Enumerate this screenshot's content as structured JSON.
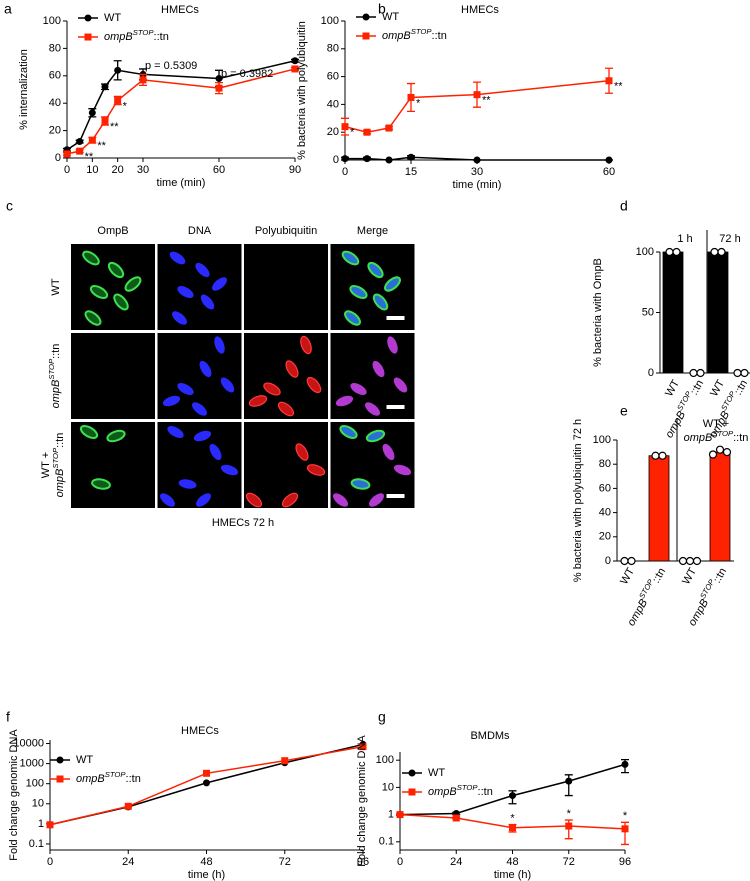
{
  "chart_data": [
    {
      "panel": "a",
      "type": "line",
      "title": "HMECs",
      "x_label": "time (min)",
      "y_label": "% internalization",
      "x": [
        0,
        5,
        10,
        15,
        20,
        30,
        60,
        90
      ],
      "xlim": [
        0,
        90
      ],
      "xticks": [
        0,
        10,
        20,
        30,
        60,
        90
      ],
      "ylim": [
        0,
        100
      ],
      "yticks": [
        0,
        20,
        40,
        60,
        80,
        100
      ],
      "legend": "upper left",
      "series": [
        {
          "name": "WT",
          "color": "#000000",
          "marker": "circle",
          "values": [
            6,
            12,
            33,
            52,
            64,
            61,
            58,
            71
          ],
          "errors": [
            1,
            1,
            3,
            2,
            7,
            4,
            6,
            1
          ]
        },
        {
          "name": [
            "ompB",
            "STOP",
            "::tn"
          ],
          "color": "#ff2200",
          "marker": "square",
          "values": [
            3,
            5,
            13,
            27,
            42,
            57,
            51,
            65
          ],
          "errors": [
            1,
            1,
            2,
            3,
            3,
            4,
            4,
            1
          ]
        }
      ],
      "annotations": [
        {
          "text": "**",
          "x": 5
        },
        {
          "text": "**",
          "x": 10
        },
        {
          "text": "**",
          "x": 15
        },
        {
          "text": "*",
          "x": 20
        },
        {
          "text": "p = 0.5309",
          "x": 30
        },
        {
          "text": "p = 0.3982",
          "x": 60
        }
      ]
    },
    {
      "panel": "b",
      "type": "line",
      "title": "HMECs",
      "x_label": "time (min)",
      "y_label": "% bacteria with polyubiquitin",
      "x": [
        0,
        5,
        10,
        15,
        30,
        60
      ],
      "xlim": [
        0,
        60
      ],
      "xticks": [
        0,
        15,
        30,
        60
      ],
      "ylim": [
        0,
        100
      ],
      "yticks": [
        0,
        20,
        40,
        60,
        80,
        100
      ],
      "legend": "upper left",
      "series": [
        {
          "name": "WT",
          "color": "#000000",
          "marker": "circle",
          "values": [
            1,
            1,
            0,
            2,
            0,
            0
          ],
          "errors": [
            1,
            1,
            0,
            1,
            0,
            0
          ]
        },
        {
          "name": [
            "ompB",
            "STOP",
            "::tn"
          ],
          "color": "#ff2200",
          "marker": "square",
          "values": [
            24,
            20,
            23,
            45,
            47,
            57
          ],
          "errors": [
            6,
            1,
            1,
            10,
            9,
            9
          ]
        }
      ],
      "annotations": [
        {
          "text": "*",
          "x": 0
        },
        {
          "text": "*",
          "x": 15
        },
        {
          "text": "**",
          "x": 30
        },
        {
          "text": "**",
          "x": 60
        }
      ]
    },
    {
      "panel": "d",
      "type": "bar",
      "y_label": "% bacteria with OmpB",
      "ylim": [
        0,
        100
      ],
      "yticks": [
        0,
        50,
        100
      ],
      "categories": [
        "WT",
        [
          "ompB",
          "STOP",
          "::tn"
        ]
      ],
      "colors": [
        "#000000",
        "#000000"
      ],
      "groups": [
        {
          "label": "1 h",
          "values": [
            100,
            0
          ],
          "points": [
            [
              100,
              100
            ],
            [
              0,
              0
            ]
          ]
        },
        {
          "label": "72 h",
          "values": [
            100,
            0
          ],
          "points": [
            [
              100,
              100
            ],
            [
              0,
              0
            ]
          ]
        }
      ]
    },
    {
      "panel": "e",
      "type": "bar",
      "y_label": "% bacteria with polyubiquitin 72 h",
      "ylim": [
        0,
        100
      ],
      "yticks": [
        0,
        20,
        40,
        60,
        80,
        100
      ],
      "categories": [
        "WT",
        [
          "ompB",
          "STOP",
          "::tn"
        ]
      ],
      "colors": [
        "#000000",
        "#ff2200"
      ],
      "groups": [
        {
          "label": null,
          "values": [
            0,
            87
          ],
          "points": [
            [
              0,
              0
            ],
            [
              87,
              87
            ]
          ]
        },
        {
          "label": [
            "WT +",
            [
              "ompB",
              "STOP",
              "::tn"
            ]
          ],
          "values": [
            0,
            90
          ],
          "points": [
            [
              0,
              0,
              0
            ],
            [
              88,
              92,
              90
            ]
          ]
        }
      ]
    },
    {
      "panel": "f",
      "type": "line",
      "title": "HMECs",
      "x_label": "time (h)",
      "y_label": "Fold change genomic DNA",
      "log_y": true,
      "x": [
        0,
        24,
        48,
        72,
        96
      ],
      "xlim": [
        0,
        96
      ],
      "xticks": [
        0,
        24,
        48,
        72,
        96
      ],
      "ylim": [
        0.05,
        15000
      ],
      "yticks": [
        0.1,
        1,
        10,
        100,
        1000,
        10000
      ],
      "legend": "upper left",
      "series": [
        {
          "name": "WT",
          "color": "#000000",
          "marker": "circle",
          "values": [
            0.9,
            7,
            110,
            1100,
            9000
          ]
        },
        {
          "name": [
            "ompB",
            "STOP",
            "::tn"
          ],
          "color": "#ff2200",
          "marker": "square",
          "values": [
            0.9,
            7.5,
            330,
            1400,
            7000
          ]
        }
      ]
    },
    {
      "panel": "g",
      "type": "line",
      "title": "BMDMs",
      "x_label": "time (h)",
      "y_label": "Fold change genomic DNA",
      "log_y": true,
      "x": [
        0,
        24,
        48,
        72,
        96
      ],
      "xlim": [
        0,
        96
      ],
      "xticks": [
        0,
        24,
        48,
        72,
        96
      ],
      "ylim": [
        0.05,
        200
      ],
      "yticks": [
        0.1,
        1,
        10,
        100
      ],
      "legend": "upper left",
      "series": [
        {
          "name": "WT",
          "color": "#000000",
          "marker": "circle",
          "values": [
            1,
            1.1,
            5,
            17,
            70
          ],
          "errors": [
            0.05,
            0.1,
            2.5,
            12,
            35
          ]
        },
        {
          "name": [
            "ompB",
            "STOP",
            "::tn"
          ],
          "color": "#ff2200",
          "marker": "square",
          "values": [
            1,
            0.75,
            0.33,
            0.38,
            0.3
          ],
          "errors": [
            0.05,
            0.05,
            0.1,
            0.25,
            0.22
          ]
        }
      ],
      "annotations": [
        {
          "text": "*",
          "x": 48
        },
        {
          "text": "*",
          "x": 72
        },
        {
          "text": "*",
          "x": 96
        }
      ]
    }
  ],
  "microscopy": {
    "panel": "c",
    "columns": [
      "OmpB",
      "DNA",
      "Polyubiquitin",
      "Merge"
    ],
    "rows": [
      "WT",
      [
        "ompB",
        "STOP",
        "::tn"
      ],
      [
        "WT +",
        [
          "ompB",
          "STOP",
          "::tn"
        ]
      ]
    ],
    "caption": "HMECs 72 h"
  }
}
